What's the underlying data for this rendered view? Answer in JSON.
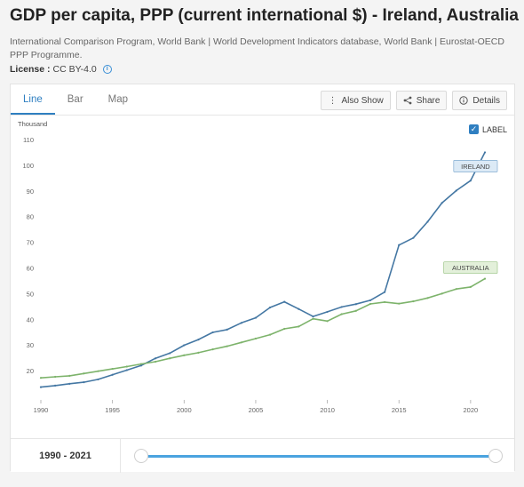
{
  "page": {
    "title": "GDP per capita, PPP (current international $) - Ireland, Australia",
    "sources": "International Comparison Program, World Bank | World Development Indicators database, World Bank | Eurostat-OECD PPP Programme.",
    "license_label": "License :",
    "license_value": "CC BY-4.0"
  },
  "tabs": [
    {
      "label": "Line",
      "active": true
    },
    {
      "label": "Bar",
      "active": false
    },
    {
      "label": "Map",
      "active": false
    }
  ],
  "actions": {
    "also_show": "Also Show",
    "share": "Share",
    "details": "Details"
  },
  "label_toggle": {
    "label": "LABEL",
    "checked": true
  },
  "footer": {
    "range_label": "1990 - 2021",
    "range_start": 1990,
    "range_end": 2021
  },
  "colors": {
    "ireland": "#4477a3",
    "australia": "#7db36b",
    "accent": "#2f7fc1"
  },
  "chart_data": {
    "type": "line",
    "ylabel": "Thousand",
    "ylim": [
      10,
      110
    ],
    "xlim": [
      1990,
      2021
    ],
    "yticks": [
      20,
      30,
      40,
      50,
      60,
      70,
      80,
      90,
      100,
      110
    ],
    "xticks": [
      1990,
      1995,
      2000,
      2005,
      2010,
      2015,
      2020
    ],
    "grid": false,
    "x": [
      1990,
      1991,
      1992,
      1993,
      1994,
      1995,
      1996,
      1997,
      1998,
      1999,
      2000,
      2001,
      2002,
      2003,
      2004,
      2005,
      2006,
      2007,
      2008,
      2009,
      2010,
      2011,
      2012,
      2013,
      2014,
      2015,
      2016,
      2017,
      2018,
      2019,
      2020,
      2021
    ],
    "series": [
      {
        "name": "IRELAND",
        "values": [
          13.6,
          14.2,
          14.9,
          15.5,
          16.6,
          18.4,
          20.2,
          22.0,
          24.8,
          26.8,
          29.9,
          32.1,
          34.9,
          36.0,
          38.6,
          40.6,
          44.6,
          46.8,
          44.0,
          41.1,
          42.9,
          44.8,
          45.9,
          47.4,
          50.6,
          68.9,
          71.7,
          78.0,
          85.3,
          90.1,
          94.0,
          105.0
        ]
      },
      {
        "name": "AUSTRALIA",
        "values": [
          17.2,
          17.6,
          18.0,
          18.9,
          19.8,
          20.7,
          21.6,
          22.6,
          23.5,
          24.8,
          26.0,
          27.0,
          28.3,
          29.5,
          31.0,
          32.5,
          34.0,
          36.3,
          37.2,
          40.2,
          39.3,
          42.0,
          43.3,
          46.0,
          46.7,
          46.1,
          47.0,
          48.3,
          50.0,
          51.8,
          52.6,
          55.8
        ]
      }
    ]
  }
}
